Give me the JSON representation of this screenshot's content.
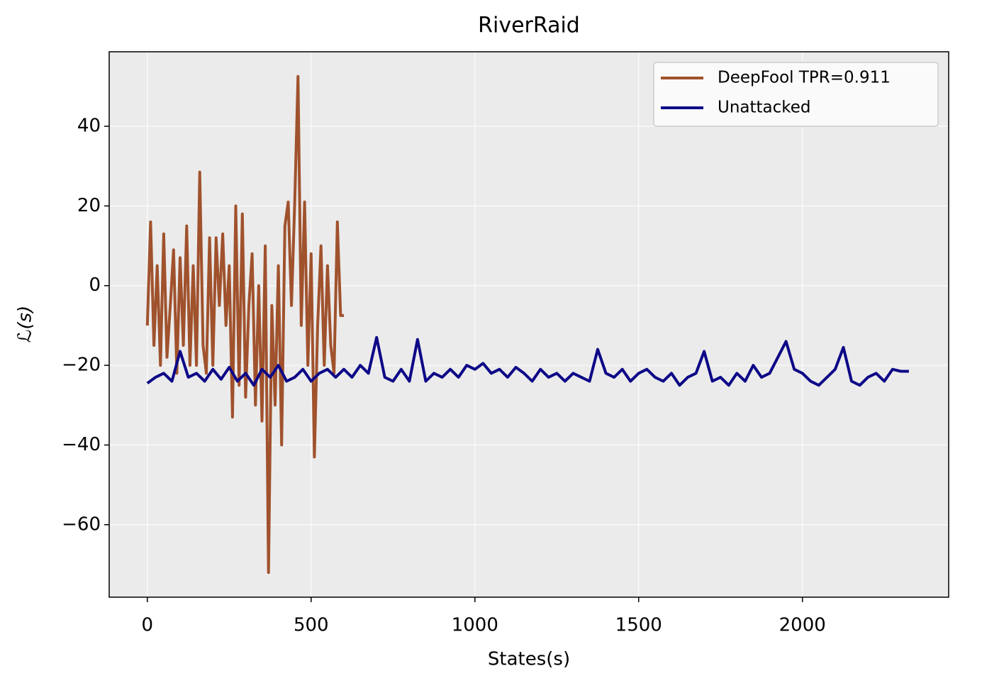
{
  "chart_data": {
    "type": "line",
    "title": "RiverRaid",
    "xlabel": "States(s)",
    "ylabel": "ℒ(s)",
    "xlim": [
      -116.5,
      2446.5
    ],
    "ylim": [
      -78.2,
      58.7
    ],
    "xticks": [
      0,
      500,
      1000,
      1500,
      2000
    ],
    "yticks": [
      {
        "value": -60,
        "label": "−60"
      },
      {
        "value": -40,
        "label": "−40"
      },
      {
        "value": -20,
        "label": "−20"
      },
      0,
      20,
      40
    ],
    "grid": true,
    "legend": "upper right",
    "series": [
      {
        "name": "DeepFool TPR=0.911",
        "color": "#a0522d",
        "x": [
          0,
          10,
          20,
          30,
          40,
          50,
          60,
          70,
          80,
          90,
          100,
          110,
          120,
          130,
          140,
          150,
          160,
          170,
          180,
          190,
          200,
          210,
          220,
          230,
          240,
          250,
          260,
          270,
          280,
          290,
          300,
          310,
          320,
          330,
          340,
          350,
          360,
          370,
          380,
          390,
          400,
          410,
          420,
          430,
          440,
          450,
          460,
          470,
          480,
          490,
          500,
          510,
          520,
          530,
          540,
          550,
          560,
          570,
          580,
          590,
          600
        ],
        "values": [
          -10,
          16,
          -15,
          5,
          -20,
          13,
          -18,
          -5,
          9,
          -22,
          7,
          -15,
          15,
          -20,
          5,
          -20,
          28.5,
          -15,
          -22,
          12,
          -20,
          12,
          -5,
          13,
          -10,
          5,
          -33,
          20,
          -25,
          18,
          -28,
          -5,
          8,
          -30,
          0,
          -34,
          10,
          -72,
          -5,
          -30,
          5,
          -40,
          15,
          21,
          -5,
          21,
          52.5,
          -10,
          21,
          -20,
          8,
          -43,
          -10,
          10,
          -20,
          5,
          -15,
          -22,
          16,
          -7.5,
          -7.5
        ]
      },
      {
        "name": "Unattacked",
        "color": "#0d0887",
        "x": [
          0,
          25,
          50,
          75,
          100,
          125,
          150,
          175,
          200,
          225,
          250,
          275,
          300,
          325,
          350,
          375,
          400,
          425,
          450,
          475,
          500,
          525,
          550,
          575,
          600,
          625,
          650,
          675,
          700,
          725,
          750,
          775,
          800,
          825,
          850,
          875,
          900,
          925,
          950,
          975,
          1000,
          1025,
          1050,
          1075,
          1100,
          1125,
          1150,
          1175,
          1200,
          1225,
          1250,
          1275,
          1300,
          1325,
          1350,
          1375,
          1400,
          1425,
          1450,
          1475,
          1500,
          1525,
          1550,
          1575,
          1600,
          1625,
          1650,
          1675,
          1700,
          1725,
          1750,
          1775,
          1800,
          1825,
          1850,
          1875,
          1900,
          1925,
          1950,
          1975,
          2000,
          2025,
          2050,
          2075,
          2100,
          2125,
          2150,
          2175,
          2200,
          2225,
          2250,
          2275,
          2300,
          2325
        ],
        "values": [
          -24.5,
          -23,
          -22,
          -24,
          -16.5,
          -23,
          -22,
          -24,
          -21,
          -23.5,
          -20.5,
          -24,
          -22,
          -25,
          -21,
          -23,
          -20,
          -24,
          -23,
          -21,
          -24,
          -22,
          -21,
          -23,
          -21,
          -23,
          -20,
          -22,
          -13,
          -23,
          -24,
          -21,
          -24,
          -13.5,
          -24,
          -22,
          -23,
          -21,
          -23,
          -20,
          -21,
          -19.5,
          -22,
          -21,
          -23,
          -20.5,
          -22,
          -24,
          -21,
          -23,
          -22,
          -24,
          -22,
          -23,
          -24,
          -16,
          -22,
          -23,
          -21,
          -24,
          -22,
          -21,
          -23,
          -24,
          -22,
          -25,
          -23,
          -22,
          -16.5,
          -24,
          -23,
          -25,
          -22,
          -24,
          -20,
          -23,
          -22,
          -18,
          -14,
          -21,
          -22,
          -24,
          -25,
          -23,
          -21,
          -15.5,
          -24,
          -25,
          -23,
          -22,
          -24,
          -21,
          -21.5,
          -21.5
        ]
      }
    ]
  }
}
